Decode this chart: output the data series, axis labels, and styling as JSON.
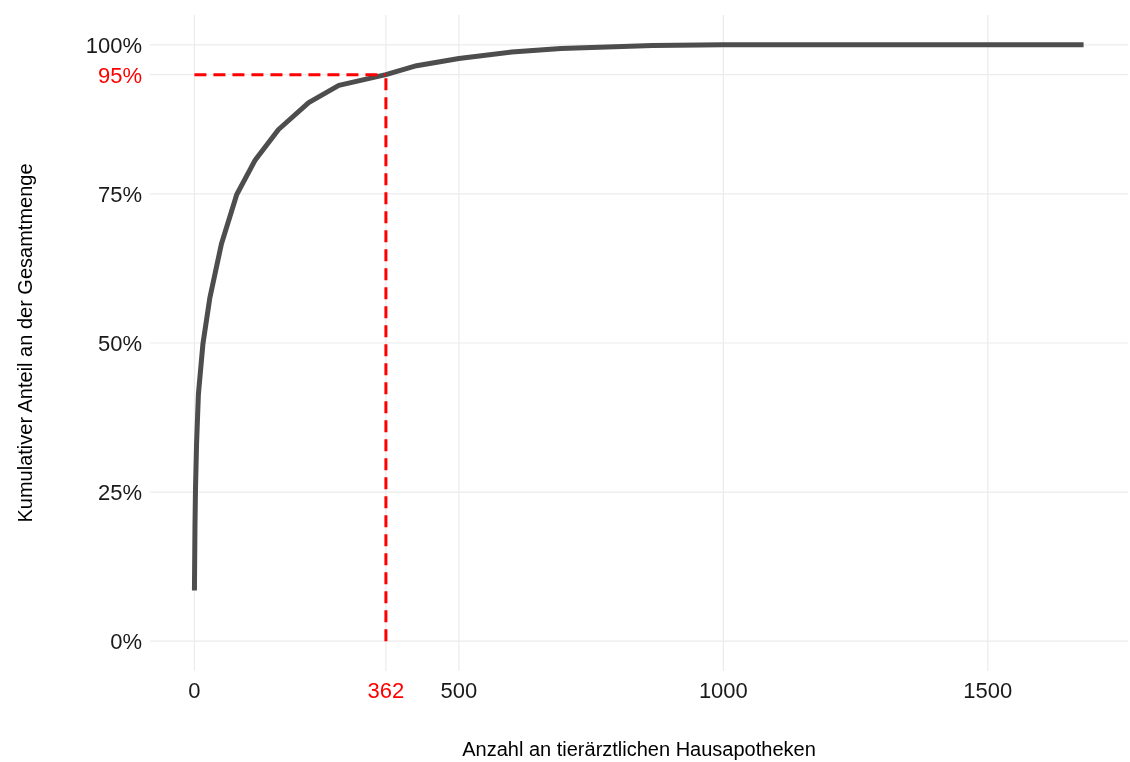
{
  "chart_data": {
    "type": "line",
    "xlabel": "Anzahl an tierärztlichen Hausapotheken",
    "ylabel": "Kumulativer Anteil an der Gesamtmenge",
    "x": [
      0,
      1,
      2,
      4,
      7.5,
      16,
      29,
      51,
      80,
      115,
      159,
      216,
      273,
      362,
      420,
      500,
      600,
      693,
      866,
      1000,
      1681
    ],
    "series": [
      {
        "color": "#4d4d4d",
        "values": [
          8.5,
          19,
          25.5,
          33,
          41.4,
          49.8,
          57.5,
          66.6,
          74.9,
          80.7,
          85.8,
          90.3,
          93.2,
          95,
          96.5,
          97.7,
          98.8,
          99.4,
          99.9,
          100,
          100
        ]
      }
    ],
    "xlim": [
      -84,
      1765
    ],
    "ylim": [
      -5,
      105
    ],
    "xticks": [
      0,
      500,
      1000,
      1500
    ],
    "yticks": [
      {
        "value": 0,
        "label": "0%"
      },
      {
        "value": 25,
        "label": "25%"
      },
      {
        "value": 50,
        "label": "50%"
      },
      {
        "value": 75,
        "label": "75%"
      },
      {
        "value": 100,
        "label": "100%"
      }
    ],
    "grid": true,
    "line_style": "solid",
    "marker": "none",
    "ref_lines": [
      {
        "axis": "x",
        "value": 362,
        "label": "362",
        "color": "#ff0000",
        "line_style": "dashed"
      },
      {
        "axis": "y",
        "value": 95,
        "label": "95%",
        "color": "#ff0000",
        "line_style": "dashed"
      }
    ]
  }
}
